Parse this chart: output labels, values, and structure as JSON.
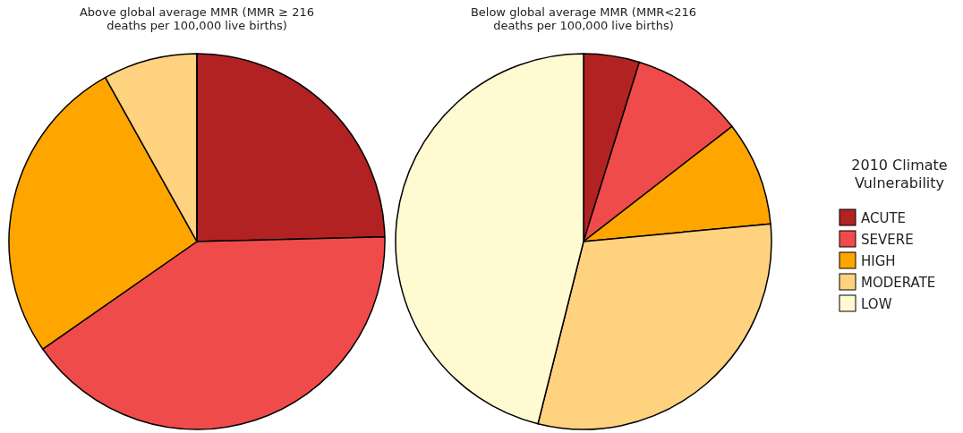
{
  "chart_data": [
    {
      "type": "pie",
      "title": "Above global average MMR (MMR ≥ 216\ndeaths per 100,000 live births)",
      "categories": [
        null,
        null,
        null,
        null,
        null
      ],
      "values": [
        24.6,
        40.7,
        26.6,
        8.1,
        0
      ],
      "colors": [
        "#b22222",
        "#f04b4b",
        "#ffa500",
        "#ffd27f",
        "#fffad2"
      ],
      "legend": false
    },
    {
      "type": "pie",
      "title": "Below global average MMR (MMR<216\ndeaths per 100,000 live births)",
      "categories": [
        "ACUTE",
        "SEVERE",
        "HIGH",
        "MODERATE",
        "LOW"
      ],
      "values": [
        4.8,
        9.7,
        9.0,
        30.4,
        46.1
      ],
      "colors": [
        "#b22222",
        "#f04b4b",
        "#ffa500",
        "#ffd27f",
        "#fffad2"
      ],
      "legend": "right",
      "legend_title": "2010 Climate\nVulnerability"
    }
  ]
}
